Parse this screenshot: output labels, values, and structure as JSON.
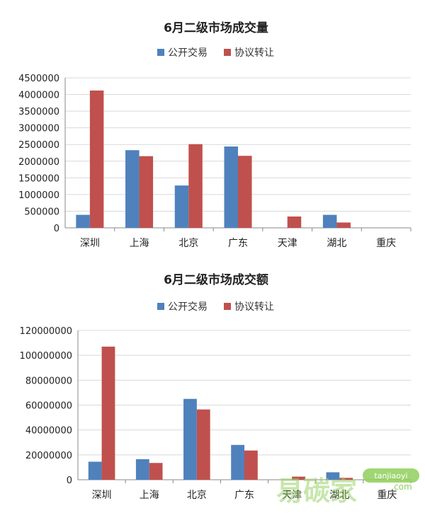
{
  "chart_data": [
    {
      "type": "bar",
      "title": "6月二级市场成交量",
      "categories": [
        "深圳",
        "上海",
        "北京",
        "广东",
        "天津",
        "湖北",
        "重庆"
      ],
      "series": [
        {
          "name": "公开交易",
          "color": "#4f81bd",
          "values": [
            390000,
            2330000,
            1270000,
            2440000,
            0,
            390000,
            0
          ]
        },
        {
          "name": "协议转让",
          "color": "#c0504d",
          "values": [
            4120000,
            2150000,
            2510000,
            2160000,
            340000,
            160000,
            0
          ]
        }
      ],
      "ylim": [
        0,
        4500000
      ],
      "yticks": [
        0,
        500000,
        1000000,
        1500000,
        2000000,
        2500000,
        3000000,
        3500000,
        4000000,
        4500000
      ],
      "legend": "top",
      "grid": true
    },
    {
      "type": "bar",
      "title": "6月二级市场成交额",
      "categories": [
        "深圳",
        "上海",
        "北京",
        "广东",
        "天津",
        "湖北",
        "重庆"
      ],
      "series": [
        {
          "name": "公开交易",
          "color": "#4f81bd",
          "values": [
            14500000,
            16500000,
            65000000,
            28000000,
            0,
            6000000,
            0
          ]
        },
        {
          "name": "协议转让",
          "color": "#c0504d",
          "values": [
            107000000,
            13500000,
            56500000,
            23500000,
            2500000,
            1500000,
            0
          ]
        }
      ],
      "ylim": [
        0,
        120000000
      ],
      "yticks": [
        0,
        20000000,
        40000000,
        60000000,
        80000000,
        100000000,
        120000000
      ],
      "legend": "top",
      "grid": true
    }
  ],
  "watermark": {
    "text": "易碳家",
    "sub": "tanjiaoyi",
    "domain": ".com"
  }
}
